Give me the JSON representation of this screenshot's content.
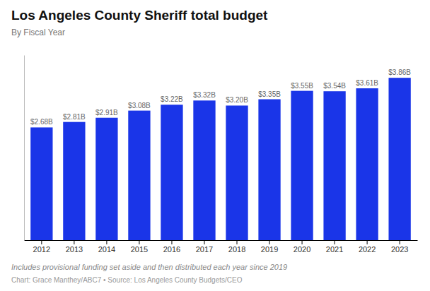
{
  "chart_data": {
    "type": "bar",
    "title": "Los Angeles County Sheriff total budget",
    "subtitle": "By Fiscal Year",
    "categories": [
      "2012",
      "2013",
      "2014",
      "2015",
      "2016",
      "2017",
      "2018",
      "2019",
      "2020",
      "2021",
      "2022",
      "2023"
    ],
    "values": [
      2.68,
      2.81,
      2.91,
      3.08,
      3.22,
      3.32,
      3.2,
      3.35,
      3.55,
      3.54,
      3.61,
      3.86
    ],
    "value_labels": [
      "$2.68B",
      "$2.81B",
      "$2.91B",
      "$3.08B",
      "$3.22B",
      "$3.32B",
      "$3.20B",
      "$3.35B",
      "$3.55B",
      "$3.54B",
      "$3.61B",
      "$3.86B"
    ],
    "data_labels": true,
    "color": "#1a35e8",
    "ylim": [
      0,
      4.4
    ],
    "tick_labels": "x",
    "annotations": [
      "Includes provisional funding set aside and then distributed each year since 2019",
      "Chart: Grace Manthey/ABC7 • Source: Los Angeles County Budgets/CEO"
    ]
  }
}
